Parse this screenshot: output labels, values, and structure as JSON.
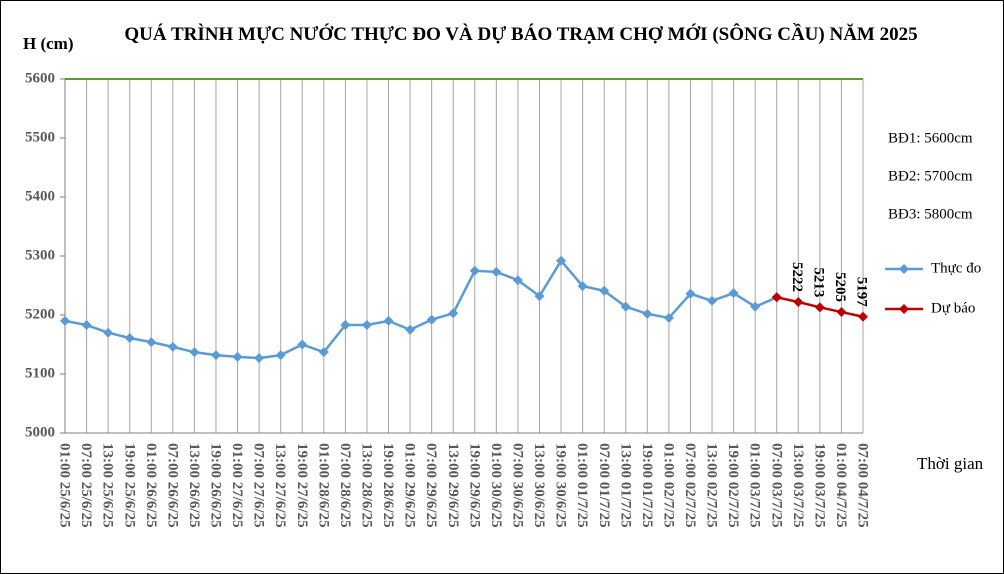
{
  "chart_data": {
    "type": "line",
    "title": "QUÁ TRÌNH MỰC NƯỚC THỰC ĐO VÀ DỰ BÁO TRẠM CHỢ MỚI (SÔNG CẦU) NĂM 2025",
    "y_label": "H (cm)",
    "x_label": "Thời gian",
    "annotations": [
      "BĐ1: 5600cm",
      "BĐ2: 5700cm",
      "BĐ3: 5800cm"
    ],
    "threshold": {
      "value": 5600,
      "color": "#5a9e32"
    },
    "categories": [
      "01:00 25/6/25",
      "07:00 25/6/25",
      "13:00 25/6/25",
      "19:00 25/6/25",
      "01:00 26/6/25",
      "07:00 26/6/25",
      "13:00 26/6/25",
      "19:00 26/6/25",
      "01:00 27/6/25",
      "07:00 27/6/25",
      "13:00 27/6/25",
      "19:00 27/6/25",
      "01:00 28/6/25",
      "07:00 28/6/25",
      "13:00 28/6/25",
      "19:00 28/6/25",
      "01:00 29/6/25",
      "07:00 29/6/25",
      "13:00 29/6/25",
      "19:00 29/6/25",
      "01:00 30/6/25",
      "07:00 30/6/25",
      "13:00 30/6/25",
      "19:00 30/6/25",
      "01:00 01/7/25",
      "07:00 01/7/25",
      "13:00 01/7/25",
      "19:00 01/7/25",
      "01:00 02/7/25",
      "07:00 02/7/25",
      "13:00 02/7/25",
      "19:00 02/7/25",
      "01:00 03/7/25",
      "07:00 03/7/25",
      "13:00 03/7/25",
      "19:00 03/7/25",
      "01:00 04/7/25",
      "07:00 04/7/25"
    ],
    "series": [
      {
        "name": "Thực đo",
        "color": "#5b9bd5",
        "values": [
          5190,
          5183,
          5170,
          5161,
          5154,
          5146,
          5137,
          5132,
          5129,
          5127,
          5132,
          5150,
          5137,
          5183,
          5183,
          5190,
          5175,
          5192,
          5203,
          5275,
          5273,
          5259,
          5232,
          5292,
          5249,
          5241,
          5214,
          5202,
          5195,
          5236,
          5224,
          5237,
          5214,
          5230,
          null,
          null,
          null,
          null
        ]
      },
      {
        "name": "Dự báo",
        "color": "#c00000",
        "values": [
          null,
          null,
          null,
          null,
          null,
          null,
          null,
          null,
          null,
          null,
          null,
          null,
          null,
          null,
          null,
          null,
          null,
          null,
          null,
          null,
          null,
          null,
          null,
          null,
          null,
          null,
          null,
          null,
          null,
          null,
          null,
          null,
          null,
          5230,
          5222,
          5213,
          5205,
          5197
        ],
        "labelled": [
          34,
          35,
          36,
          37
        ]
      }
    ],
    "ylim": [
      5000,
      5600
    ],
    "yticks": [
      5000,
      5100,
      5200,
      5300,
      5400,
      5500,
      5600
    ],
    "grid": "vertical",
    "grid_color": "#a6a6a6",
    "legend": "right"
  }
}
